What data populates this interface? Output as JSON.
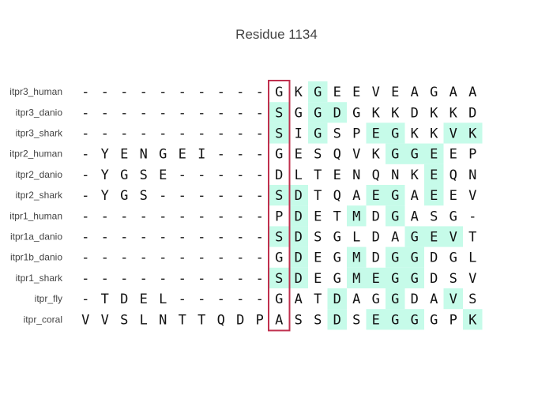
{
  "title": "Residue 1134",
  "colors": {
    "highlight": "#c6fbe9",
    "focus_box": "#c0304e",
    "text": "#111111",
    "label": "#444444"
  },
  "focus_column_index": 10,
  "sequences": [
    {
      "name": "itpr3_human",
      "residues": "----------GKGEEVEAGAA",
      "highlighted": [
        12
      ]
    },
    {
      "name": "itpr3_danio",
      "residues": "----------SGGDGKKDKKD",
      "highlighted": [
        10,
        12,
        13
      ]
    },
    {
      "name": "itpr3_shark",
      "residues": "----------SIGSPEGKKVK",
      "highlighted": [
        10,
        12,
        15,
        16,
        19,
        20
      ]
    },
    {
      "name": "itpr2_human",
      "residues": "-YENGEI---GESQVKGGEEP",
      "highlighted": [
        16,
        17,
        18
      ]
    },
    {
      "name": "itpr2_danio",
      "residues": "-YGSE-----DLTENQNKEQN",
      "highlighted": [
        18
      ]
    },
    {
      "name": "itpr2_shark",
      "residues": "-YGS------SDTQAEGAEEV",
      "highlighted": [
        10,
        11,
        15,
        16,
        18
      ]
    },
    {
      "name": "itpr1_human",
      "residues": "----------PDETMDGASG-",
      "highlighted": [
        11,
        14,
        16
      ]
    },
    {
      "name": "itpr1a_danio",
      "residues": "----------SDSGLDAGEVT",
      "highlighted": [
        10,
        11,
        17,
        18,
        19
      ]
    },
    {
      "name": "itpr1b_danio",
      "residues": "----------GDEGMDGGDGL",
      "highlighted": [
        11,
        14,
        16,
        17
      ]
    },
    {
      "name": "itpr1_shark",
      "residues": "----------SDEGMEGGDSV",
      "highlighted": [
        10,
        11,
        14,
        15,
        16,
        17
      ]
    },
    {
      "name": "itpr_fly",
      "residues": "-TDEL-----GATDAGGDAVS",
      "highlighted": [
        13,
        16,
        19
      ]
    },
    {
      "name": "itpr_coral",
      "residues": "VVSLNTTQDPASSDSEGGGPK",
      "highlighted": [
        13,
        15,
        16,
        17,
        20
      ]
    }
  ]
}
